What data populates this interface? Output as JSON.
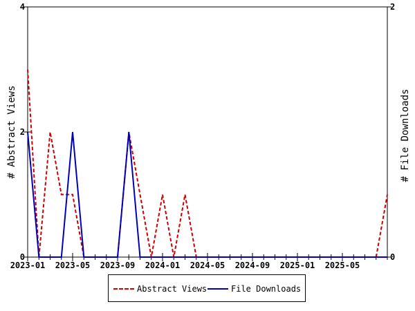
{
  "chart_data": {
    "type": "line",
    "x_dates": [
      "2023-01",
      "2023-02",
      "2023-03",
      "2023-04",
      "2023-05",
      "2023-06",
      "2023-07",
      "2023-08",
      "2023-09",
      "2023-10",
      "2023-11",
      "2023-12",
      "2024-01",
      "2024-02",
      "2024-03",
      "2024-04",
      "2024-05",
      "2024-06",
      "2024-07",
      "2024-08",
      "2024-09",
      "2024-10",
      "2024-11",
      "2024-12",
      "2025-01",
      "2025-02",
      "2025-03",
      "2025-04",
      "2025-05",
      "2025-06",
      "2025-07",
      "2025-08",
      "2025-09"
    ],
    "x_ticks": [
      "2023-01",
      "2023-05",
      "2023-09",
      "2024-01",
      "2024-05",
      "2024-09",
      "2025-01",
      "2025-05"
    ],
    "series": [
      {
        "name": "Abstract Views",
        "axis": "left",
        "color": "#cc0000",
        "dash": "dashed",
        "values": [
          3,
          0,
          2,
          1,
          1,
          0,
          0,
          0,
          0,
          2,
          1,
          0,
          1,
          0,
          1,
          0,
          0,
          0,
          0,
          0,
          0,
          0,
          0,
          0,
          0,
          0,
          0,
          0,
          0,
          0,
          0,
          0,
          1
        ]
      },
      {
        "name": "File Downloads",
        "axis": "right",
        "color": "#0000bb",
        "dash": "solid",
        "values": [
          1,
          0,
          0,
          0,
          1,
          0,
          0,
          0,
          0,
          1,
          0,
          0,
          0,
          0,
          0,
          0,
          0,
          0,
          0,
          0,
          0,
          0,
          0,
          0,
          0,
          0,
          0,
          0,
          0,
          0,
          0,
          0,
          0
        ]
      }
    ],
    "ylabel_left": "# Abstract Views",
    "ylabel_right": "# File Downloads",
    "ylim_left": [
      0,
      4
    ],
    "ylim_right": [
      0,
      2
    ],
    "yticks_left": [
      "0",
      "2",
      "4"
    ],
    "yticks_right": [
      "0",
      "2"
    ],
    "grid": false,
    "legend_position": "bottom-center"
  }
}
